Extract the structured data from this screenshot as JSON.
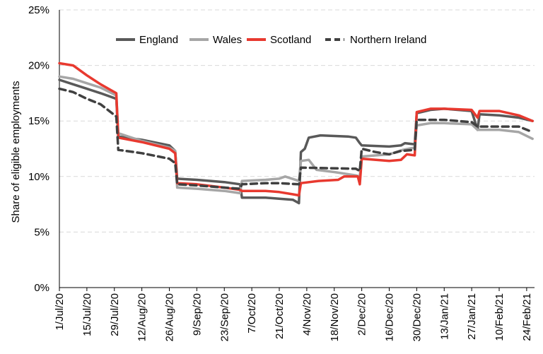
{
  "chart_data": {
    "type": "line",
    "ylabel": "Share of eligible employments",
    "ylim": [
      0,
      25
    ],
    "y_ticks": [
      "0%",
      "5%",
      "10%",
      "15%",
      "20%",
      "25%"
    ],
    "y_tick_values": [
      0,
      5,
      10,
      15,
      20,
      25
    ],
    "x_range": [
      "2020-07-01",
      "2021-02-28"
    ],
    "x_ticks": [
      "1/Jul/20",
      "15/Jul/20",
      "29/Jul/20",
      "12/Aug/20",
      "26/Aug/20",
      "9/Sep/20",
      "23/Sep/20",
      "7/Oct/20",
      "21/Oct/20",
      "4/Nov/20",
      "18/Nov/20",
      "2/Dec/20",
      "16/Dec/20",
      "30/Dec/20",
      "13/Jan/21",
      "27/Jan/21",
      "10/Feb/21",
      "24/Feb/21"
    ],
    "x_tick_dates": [
      "2020-07-01",
      "2020-07-15",
      "2020-07-29",
      "2020-08-12",
      "2020-08-26",
      "2020-09-09",
      "2020-09-23",
      "2020-10-07",
      "2020-10-21",
      "2020-11-04",
      "2020-11-18",
      "2020-12-02",
      "2020-12-16",
      "2020-12-30",
      "2021-01-13",
      "2021-01-27",
      "2021-02-10",
      "2021-02-24"
    ],
    "grid": "horizontal",
    "legend": "top",
    "series": [
      {
        "name": "England",
        "color": "#595959",
        "style": "solid",
        "points": [
          [
            "2020-07-01",
            18.7
          ],
          [
            "2020-07-08",
            18.3
          ],
          [
            "2020-07-15",
            17.9
          ],
          [
            "2020-07-22",
            17.5
          ],
          [
            "2020-07-30",
            17.0
          ],
          [
            "2020-07-31",
            13.6
          ],
          [
            "2020-08-12",
            13.3
          ],
          [
            "2020-08-26",
            12.8
          ],
          [
            "2020-08-29",
            12.3
          ],
          [
            "2020-08-30",
            9.8
          ],
          [
            "2020-09-09",
            9.7
          ],
          [
            "2020-09-23",
            9.5
          ],
          [
            "2020-10-01",
            9.3
          ],
          [
            "2020-10-02",
            8.1
          ],
          [
            "2020-10-14",
            8.1
          ],
          [
            "2020-10-21",
            8.0
          ],
          [
            "2020-10-28",
            7.9
          ],
          [
            "2020-10-31",
            7.6
          ],
          [
            "2020-11-01",
            12.2
          ],
          [
            "2020-11-03",
            12.5
          ],
          [
            "2020-11-05",
            13.5
          ],
          [
            "2020-11-11",
            13.7
          ],
          [
            "2020-11-25",
            13.6
          ],
          [
            "2020-11-29",
            13.5
          ],
          [
            "2020-12-01",
            13.0
          ],
          [
            "2020-12-02",
            12.8
          ],
          [
            "2020-12-16",
            12.7
          ],
          [
            "2020-12-22",
            12.8
          ],
          [
            "2020-12-24",
            13.0
          ],
          [
            "2020-12-29",
            12.9
          ],
          [
            "2020-12-30",
            15.7
          ],
          [
            "2021-01-06",
            16.0
          ],
          [
            "2021-01-13",
            16.1
          ],
          [
            "2021-01-27",
            15.9
          ],
          [
            "2021-01-30",
            14.2
          ],
          [
            "2021-01-31",
            15.6
          ],
          [
            "2021-02-10",
            15.5
          ],
          [
            "2021-02-20",
            15.3
          ],
          [
            "2021-02-27",
            15.0
          ]
        ]
      },
      {
        "name": "Wales",
        "color": "#a6a6a6",
        "style": "solid",
        "points": [
          [
            "2020-07-01",
            19.0
          ],
          [
            "2020-07-08",
            18.8
          ],
          [
            "2020-07-15",
            18.4
          ],
          [
            "2020-07-22",
            18.0
          ],
          [
            "2020-07-30",
            17.3
          ],
          [
            "2020-07-31",
            13.9
          ],
          [
            "2020-08-12",
            13.2
          ],
          [
            "2020-08-26",
            12.6
          ],
          [
            "2020-08-29",
            12.3
          ],
          [
            "2020-08-30",
            9.0
          ],
          [
            "2020-09-09",
            8.9
          ],
          [
            "2020-09-23",
            8.7
          ],
          [
            "2020-10-01",
            8.5
          ],
          [
            "2020-10-02",
            9.6
          ],
          [
            "2020-10-14",
            9.7
          ],
          [
            "2020-10-21",
            9.8
          ],
          [
            "2020-10-24",
            10.0
          ],
          [
            "2020-10-31",
            9.6
          ],
          [
            "2020-11-01",
            11.4
          ],
          [
            "2020-11-05",
            11.5
          ],
          [
            "2020-11-09",
            10.6
          ],
          [
            "2020-11-18",
            10.4
          ],
          [
            "2020-11-29",
            10.1
          ],
          [
            "2020-12-01",
            10.0
          ],
          [
            "2020-12-02",
            11.8
          ],
          [
            "2020-12-16",
            12.0
          ],
          [
            "2020-12-23",
            12.4
          ],
          [
            "2020-12-29",
            12.6
          ],
          [
            "2020-12-30",
            14.6
          ],
          [
            "2021-01-06",
            14.8
          ],
          [
            "2021-01-13",
            14.8
          ],
          [
            "2021-01-27",
            14.7
          ],
          [
            "2021-01-30",
            14.2
          ],
          [
            "2021-01-31",
            14.2
          ],
          [
            "2021-02-10",
            14.2
          ],
          [
            "2021-02-20",
            14.0
          ],
          [
            "2021-02-27",
            13.4
          ]
        ]
      },
      {
        "name": "Scotland",
        "color": "#e8392f",
        "style": "solid",
        "points": [
          [
            "2020-07-01",
            20.2
          ],
          [
            "2020-07-08",
            20.0
          ],
          [
            "2020-07-15",
            19.1
          ],
          [
            "2020-07-22",
            18.3
          ],
          [
            "2020-07-30",
            17.5
          ],
          [
            "2020-07-31",
            13.5
          ],
          [
            "2020-08-12",
            13.1
          ],
          [
            "2020-08-26",
            12.5
          ],
          [
            "2020-08-29",
            12.1
          ],
          [
            "2020-08-30",
            9.4
          ],
          [
            "2020-09-09",
            9.3
          ],
          [
            "2020-09-23",
            9.0
          ],
          [
            "2020-10-01",
            8.8
          ],
          [
            "2020-10-02",
            8.7
          ],
          [
            "2020-10-14",
            8.7
          ],
          [
            "2020-10-21",
            8.6
          ],
          [
            "2020-10-28",
            8.4
          ],
          [
            "2020-10-31",
            8.3
          ],
          [
            "2020-11-01",
            9.4
          ],
          [
            "2020-11-10",
            9.6
          ],
          [
            "2020-11-20",
            9.7
          ],
          [
            "2020-11-23",
            10.0
          ],
          [
            "2020-11-30",
            10.0
          ],
          [
            "2020-12-01",
            9.3
          ],
          [
            "2020-12-02",
            11.6
          ],
          [
            "2020-12-16",
            11.4
          ],
          [
            "2020-12-22",
            11.5
          ],
          [
            "2020-12-25",
            12.0
          ],
          [
            "2020-12-29",
            11.9
          ],
          [
            "2020-12-30",
            15.8
          ],
          [
            "2021-01-06",
            16.1
          ],
          [
            "2021-01-13",
            16.1
          ],
          [
            "2021-01-27",
            16.0
          ],
          [
            "2021-01-30",
            15.3
          ],
          [
            "2021-01-31",
            15.9
          ],
          [
            "2021-02-10",
            15.9
          ],
          [
            "2021-02-20",
            15.5
          ],
          [
            "2021-02-27",
            15.0
          ]
        ]
      },
      {
        "name": "Northern Ireland",
        "color": "#404040",
        "style": "dashed",
        "points": [
          [
            "2020-07-01",
            17.9
          ],
          [
            "2020-07-08",
            17.6
          ],
          [
            "2020-07-15",
            17.0
          ],
          [
            "2020-07-22",
            16.5
          ],
          [
            "2020-07-30",
            15.4
          ],
          [
            "2020-07-31",
            12.4
          ],
          [
            "2020-08-12",
            12.1
          ],
          [
            "2020-08-26",
            11.6
          ],
          [
            "2020-08-29",
            11.2
          ],
          [
            "2020-08-30",
            9.3
          ],
          [
            "2020-09-09",
            9.2
          ],
          [
            "2020-09-23",
            9.0
          ],
          [
            "2020-10-01",
            8.9
          ],
          [
            "2020-10-02",
            9.3
          ],
          [
            "2020-10-14",
            9.4
          ],
          [
            "2020-10-21",
            9.4
          ],
          [
            "2020-10-31",
            9.3
          ],
          [
            "2020-11-01",
            10.8
          ],
          [
            "2020-11-29",
            10.7
          ],
          [
            "2020-12-01",
            10.5
          ],
          [
            "2020-12-02",
            12.5
          ],
          [
            "2020-12-09",
            12.2
          ],
          [
            "2020-12-16",
            12.0
          ],
          [
            "2020-12-22",
            12.3
          ],
          [
            "2020-12-29",
            12.4
          ],
          [
            "2020-12-30",
            15.1
          ],
          [
            "2021-01-06",
            15.1
          ],
          [
            "2021-01-13",
            15.1
          ],
          [
            "2021-01-27",
            14.9
          ],
          [
            "2021-01-30",
            14.5
          ],
          [
            "2021-01-31",
            14.5
          ],
          [
            "2021-02-10",
            14.5
          ],
          [
            "2021-02-20",
            14.5
          ],
          [
            "2021-02-27",
            14.0
          ]
        ]
      }
    ]
  }
}
